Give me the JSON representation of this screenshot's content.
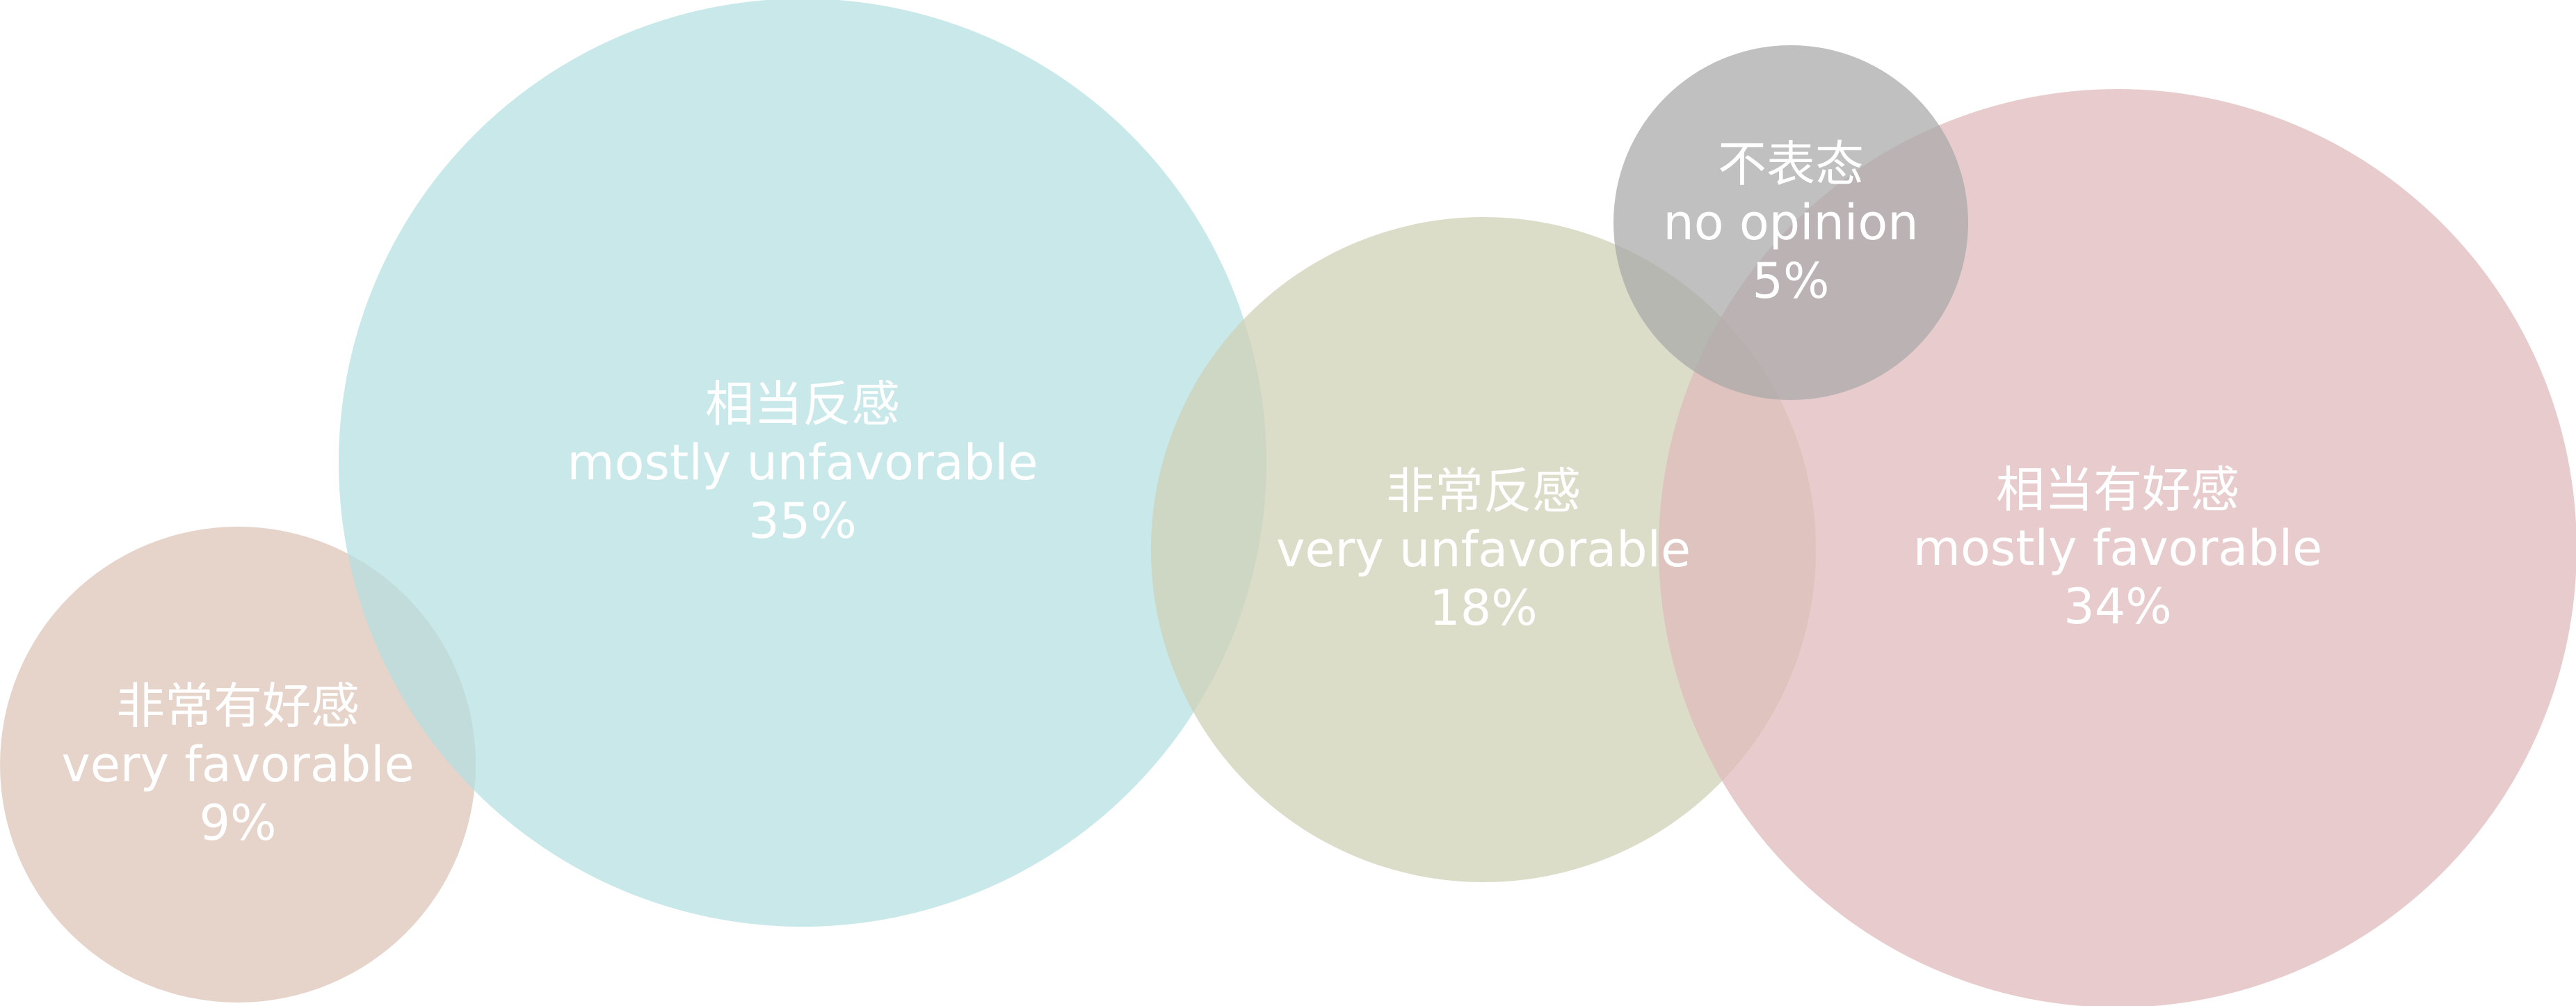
{
  "chart_data": {
    "type": "bubble",
    "title": "",
    "series": [
      {
        "label_cn": "非常有好感",
        "label_en": "very favorable",
        "value_label": "9%",
        "value": 9,
        "color": "#ddc3b6"
      },
      {
        "label_cn": "相当反感",
        "label_en": "mostly unfavorable",
        "value_label": "35%",
        "value": 35,
        "color": "#b3dfe1"
      },
      {
        "label_cn": "非常反感",
        "label_en": "very unfavorable",
        "value_label": "18%",
        "value": 18,
        "color": "#cfd0b4"
      },
      {
        "label_cn": "相当有好感",
        "label_en": "mostly favorable",
        "value_label": "34%",
        "value": 34,
        "color": "#dfb8ba"
      },
      {
        "label_cn": "不表态",
        "label_en": "no opinion",
        "value_label": "5%",
        "value": 5,
        "color": "#a9a8a9"
      }
    ]
  }
}
